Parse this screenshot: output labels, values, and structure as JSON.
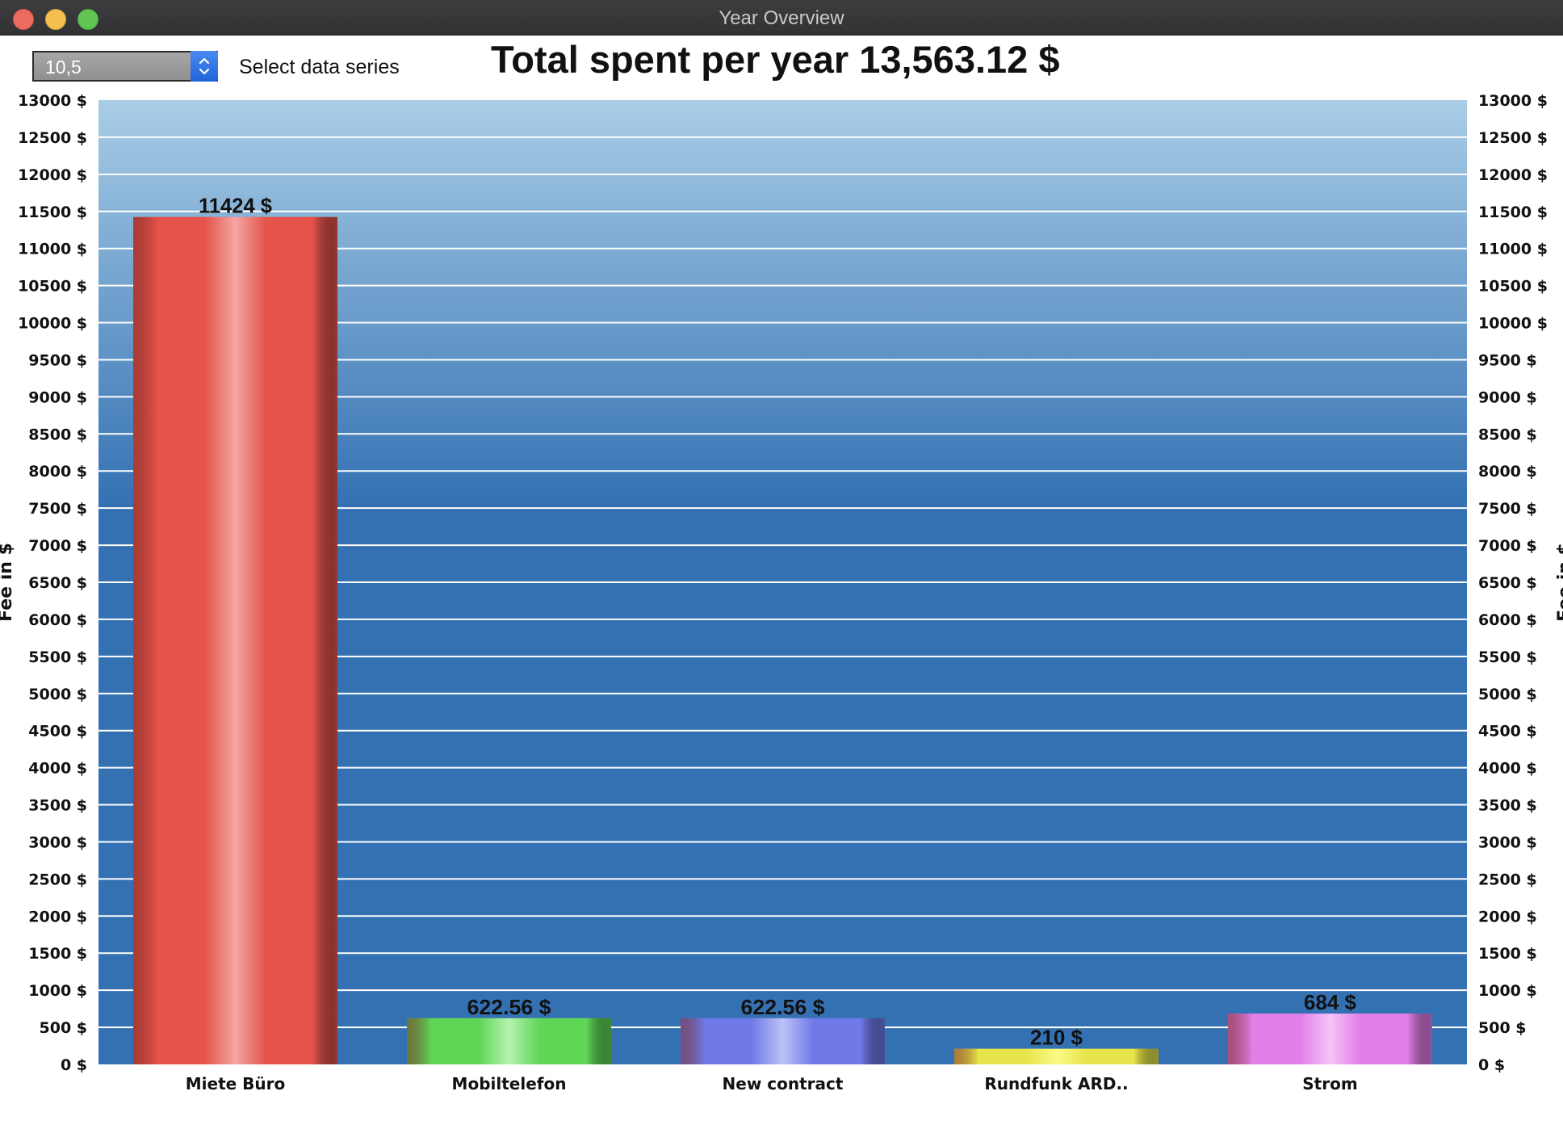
{
  "window": {
    "title": "Year Overview"
  },
  "controls": {
    "series_value": "10,5",
    "series_label": "Select data series"
  },
  "colors": {
    "plot_top": "#a9cde6",
    "plot_bottom": "#3471b3",
    "bar_series": [
      "#e5534b",
      "#5fd656",
      "#6f7ae8",
      "#e6e44a",
      "#e27ee8"
    ],
    "bar_highlights": [
      "#f3a6a3",
      "#b5f2af",
      "#bcc2f7",
      "#fafa86",
      "#f5c3f7"
    ]
  },
  "chart_data": {
    "type": "bar",
    "title": "Total spent per year 13,563.12 $",
    "ylabel": "Fee in $",
    "ylabel_right": "Fee in $",
    "categories": [
      "Miete Büro",
      "Mobiltelefon",
      "New contract",
      "Rundfunk ARD..",
      "Strom"
    ],
    "values": [
      11424,
      622.56,
      622.56,
      210,
      684
    ],
    "value_labels": [
      "11424 $",
      "622.56 $",
      "622.56 $",
      "210 $",
      "684 $"
    ],
    "ylim": [
      0,
      13000
    ],
    "ytick_step": 500,
    "ytick_suffix": " $",
    "grid": true,
    "legend": "none"
  }
}
